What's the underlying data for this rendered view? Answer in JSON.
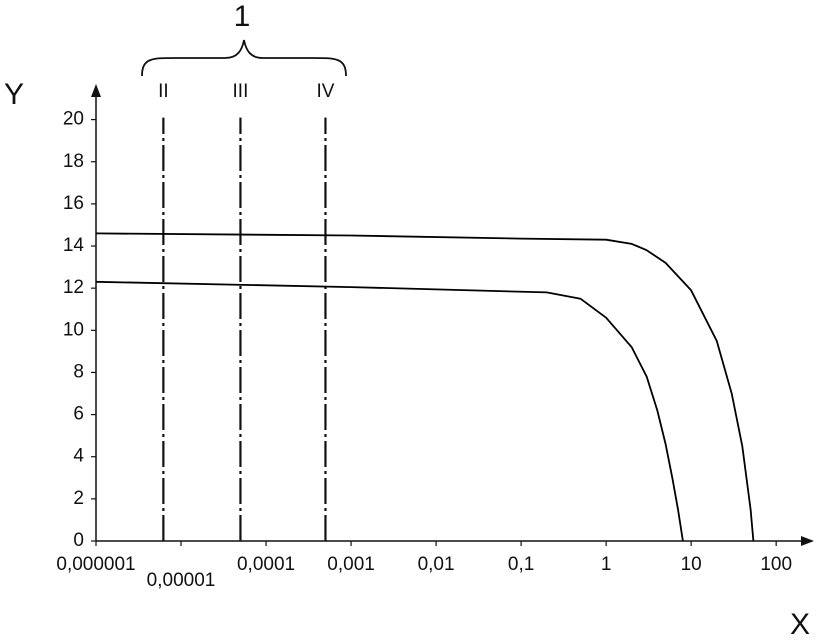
{
  "chart_data": {
    "type": "line",
    "annotation": "1",
    "xlabel": "X",
    "ylabel": "Y",
    "log_x": true,
    "xlim": [
      1e-06,
      250
    ],
    "ylim": [
      0,
      21.5
    ],
    "xticks": [
      {
        "value": 1e-06,
        "label": "0,000001"
      },
      {
        "value": 1e-05,
        "label": "0,00001"
      },
      {
        "value": 0.0001,
        "label": "0,0001"
      },
      {
        "value": 0.001,
        "label": "0,001"
      },
      {
        "value": 0.01,
        "label": "0,01"
      },
      {
        "value": 0.1,
        "label": "0,1"
      },
      1,
      10,
      100
    ],
    "yticks": [
      0,
      2,
      4,
      6,
      8,
      10,
      12,
      14,
      16,
      18,
      20
    ],
    "vlines": [
      {
        "x": 6.2e-06,
        "label": "II"
      },
      {
        "x": 5e-05,
        "label": "III"
      },
      {
        "x": 0.0005,
        "label": "IV"
      }
    ],
    "series": [
      {
        "color": "#000000",
        "x": [
          1e-06,
          0.001,
          0.1,
          1,
          2,
          3,
          5,
          10,
          20,
          30,
          40,
          50,
          54
        ],
        "values": [
          14.6,
          14.5,
          14.35,
          14.3,
          14.1,
          13.8,
          13.2,
          11.9,
          9.5,
          7,
          4.5,
          1.5,
          0
        ]
      },
      {
        "color": "#000000",
        "x": [
          1e-06,
          0.001,
          0.2,
          0.5,
          1,
          2,
          3,
          4,
          5,
          6,
          7,
          8
        ],
        "values": [
          12.3,
          12.05,
          11.8,
          11.5,
          10.6,
          9.2,
          7.8,
          6.2,
          4.6,
          3,
          1.5,
          0
        ]
      }
    ]
  }
}
